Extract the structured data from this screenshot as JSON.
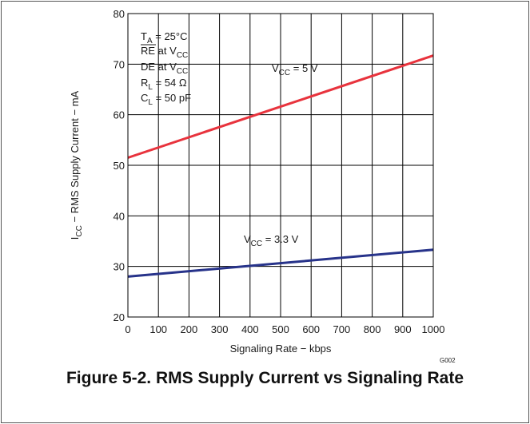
{
  "figure": {
    "code": "G002",
    "caption": "Figure 5-2. RMS Supply Current vs Signaling Rate"
  },
  "conditions": [
    {
      "main": "T",
      "sub": "A",
      "rest": " = 25°C",
      "overline": false
    },
    {
      "main": "RE",
      "sub": "",
      "rest": " at V",
      "sub2": "CC",
      "overline": true
    },
    {
      "main": "DE at V",
      "sub": "CC",
      "rest": "",
      "overline": false
    },
    {
      "main": "R",
      "sub": "L",
      "rest": " = 54 Ω",
      "overline": false
    },
    {
      "main": "C",
      "sub": "L",
      "rest": " = 50 pF",
      "overline": false
    }
  ],
  "colors": {
    "vcc5": "#e8333d",
    "vcc33": "#27338a",
    "grid": "#000000"
  },
  "chart_data": {
    "type": "line",
    "title": "",
    "xlabel": "Signaling Rate − kbps",
    "ylabel_parts": {
      "main": "I",
      "sub": "CC",
      "rest": " − RMS Supply Current − mA"
    },
    "xlim": [
      0,
      1000
    ],
    "ylim": [
      20,
      80
    ],
    "x_ticks": [
      0,
      100,
      200,
      300,
      400,
      500,
      600,
      700,
      800,
      900,
      1000
    ],
    "y_ticks": [
      20,
      30,
      40,
      50,
      60,
      70,
      80
    ],
    "grid": true,
    "legend": "none",
    "series": [
      {
        "label_main": "V",
        "label_sub": "CC",
        "label_rest": " = 5 V",
        "color_key": "vcc5",
        "x": [
          0,
          1000
        ],
        "y": [
          51.5,
          71.7
        ]
      },
      {
        "label_main": "V",
        "label_sub": "CC",
        "label_rest": " = 3.3 V",
        "color_key": "vcc33",
        "x": [
          0,
          1000
        ],
        "y": [
          28.0,
          33.3
        ]
      }
    ]
  }
}
